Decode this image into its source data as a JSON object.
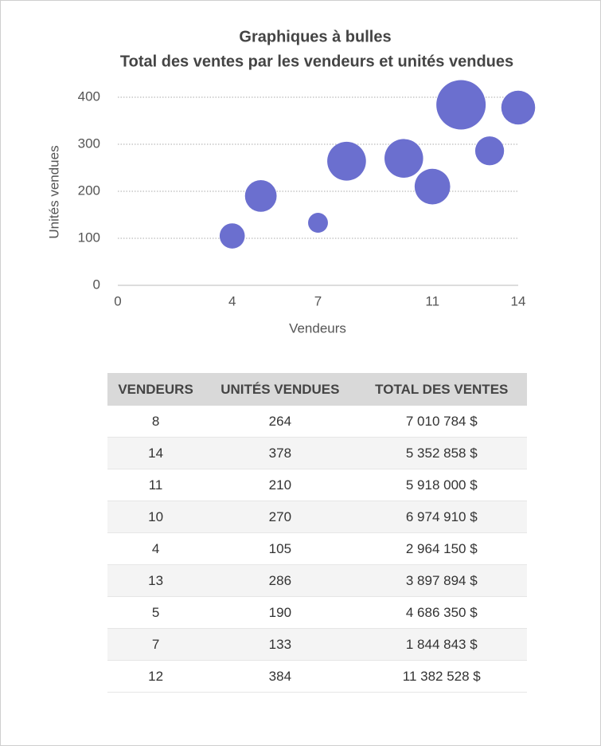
{
  "chart_data": {
    "type": "bubble",
    "title": "Graphiques à bulles",
    "subtitle": "Total des ventes par les vendeurs et unités vendues",
    "x_label": "Vendeurs",
    "y_label": "Unités vendues",
    "x": [
      8,
      14,
      11,
      10,
      4,
      13,
      5,
      7,
      12
    ],
    "values": [
      264,
      378,
      210,
      270,
      105,
      286,
      190,
      133,
      384
    ],
    "sizes": [
      7010784,
      5352858,
      5918000,
      6974910,
      2964150,
      3897894,
      4686350,
      1844843,
      11382528
    ],
    "color": "#6b6fcf",
    "xlim": [
      0,
      14
    ],
    "xticks": [
      0,
      4,
      7,
      11,
      14
    ],
    "ylim": [
      0,
      400
    ],
    "yticks": [
      0,
      100,
      200,
      300,
      400
    ],
    "grid": true
  },
  "table": {
    "header": [
      "VENDEURS",
      "UNITÉS VENDUES",
      "TOTAL DES VENTES"
    ],
    "rows": [
      [
        "8",
        "264",
        "7 010 784 $"
      ],
      [
        "14",
        "378",
        "5 352 858 $"
      ],
      [
        "11",
        "210",
        "5 918 000 $"
      ],
      [
        "10",
        "270",
        "6 974 910 $"
      ],
      [
        "4",
        "105",
        "2 964 150 $"
      ],
      [
        "13",
        "286",
        "3 897 894 $"
      ],
      [
        "5",
        "190",
        "4 686 350 $"
      ],
      [
        "7",
        "133",
        "1 844 843 $"
      ],
      [
        "12",
        "384",
        "11 382 528 $"
      ]
    ]
  }
}
